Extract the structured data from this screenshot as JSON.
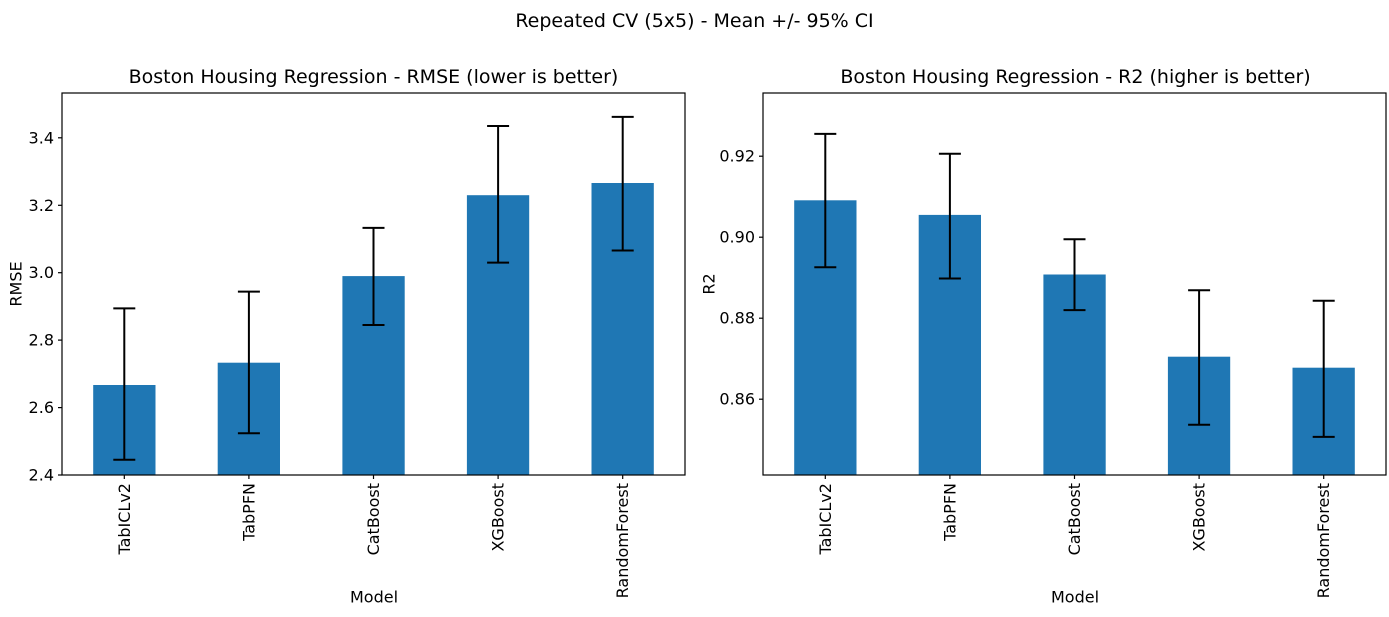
{
  "suptitle": "Repeated CV (5x5) - Mean +/- 95% CI",
  "chart_data": [
    {
      "type": "bar",
      "title": "Boston Housing Regression - RMSE (lower is better)",
      "xlabel": "Model",
      "ylabel": "RMSE",
      "categories": [
        "TabICLv2",
        "TabPFN",
        "CatBoost",
        "XGBoost",
        "RandomForest"
      ],
      "values": [
        2.667,
        2.733,
        2.99,
        3.23,
        3.266
      ],
      "ci_low": [
        2.445,
        2.524,
        2.845,
        3.03,
        3.066
      ],
      "ci_high": [
        2.894,
        2.944,
        3.133,
        3.435,
        3.462
      ],
      "ylim": [
        2.4,
        3.533
      ],
      "yticks": [
        2.4,
        2.6,
        2.8,
        3.0,
        3.2,
        3.4
      ],
      "ytick_labels": [
        "2.4",
        "2.6",
        "2.8",
        "3.0",
        "3.2",
        "3.4"
      ],
      "grid": false,
      "legend": "none",
      "bar_color": "#1f77b4",
      "error_color": "#000000"
    },
    {
      "type": "bar",
      "title": "Boston Housing Regression - R2 (higher is better)",
      "xlabel": "Model",
      "ylabel": "R2",
      "categories": [
        "TabICLv2",
        "TabPFN",
        "CatBoost",
        "XGBoost",
        "RandomForest"
      ],
      "values": [
        0.9091,
        0.9055,
        0.8908,
        0.8705,
        0.8678
      ],
      "ci_low": [
        0.8926,
        0.8898,
        0.882,
        0.8537,
        0.8507
      ],
      "ci_high": [
        0.9255,
        0.9206,
        0.8995,
        0.8869,
        0.8843
      ],
      "ylim": [
        0.8413,
        0.9356
      ],
      "yticks": [
        0.86,
        0.88,
        0.9,
        0.92
      ],
      "ytick_labels": [
        "0.86",
        "0.88",
        "0.90",
        "0.92"
      ],
      "grid": false,
      "legend": "none",
      "bar_color": "#1f77b4",
      "error_color": "#000000"
    }
  ]
}
